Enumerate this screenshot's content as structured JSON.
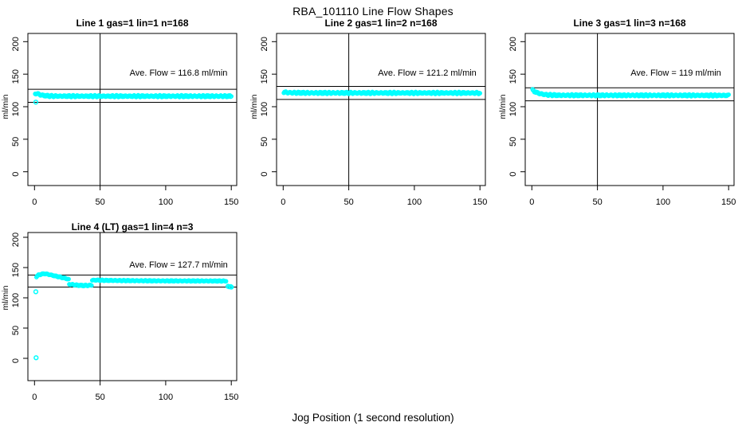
{
  "page": {
    "title": "RBA_101110  Line Flow Shapes",
    "xlabel": "Jog Position (1 second resolution)"
  },
  "colors": {
    "points": "#00ffff",
    "axis": "#000000",
    "ref_lines": "#000000",
    "background": "#ffffff",
    "text": "#000000"
  },
  "axes": {
    "x_ticks": [
      0,
      50,
      100,
      150
    ],
    "y_ticks": [
      0,
      50,
      100,
      150,
      200
    ],
    "ylabel": "ml/min"
  },
  "chart_data": [
    {
      "type": "scatter",
      "row": 0,
      "col": 0,
      "title": "Line 1 gas=1 lin=1 n=168",
      "line": 1,
      "gas": 1,
      "lin": 1,
      "n": 168,
      "ave_flow": 116.8,
      "ave_flow_label": "Ave. Flow =  116.8  ml/min",
      "xlabel": "",
      "ylabel": "ml/min",
      "xlim": [
        0,
        155
      ],
      "ylim": [
        0,
        210
      ],
      "x_ticks": [
        0,
        50,
        100,
        150
      ],
      "y_ticks": [
        0,
        50,
        100,
        150,
        200
      ],
      "ref_lines": {
        "h_upper": 126.8,
        "h_lower": 106.8,
        "v": 50
      },
      "segments": [
        {
          "band": 3.0,
          "anchors": [
            [
              0.5,
              119.5
            ],
            [
              1.5,
              120.5
            ],
            [
              2.5,
              120.0
            ],
            [
              4,
              118.5
            ],
            [
              6,
              117.5
            ],
            [
              9,
              116.8
            ],
            [
              14,
              116.3
            ],
            [
              40,
              116.2
            ],
            [
              150,
              116.2
            ]
          ]
        }
      ],
      "outliers": [
        [
          1,
          107
        ]
      ]
    },
    {
      "type": "scatter",
      "row": 0,
      "col": 1,
      "title": "Line 2 gas=1 lin=2 n=168",
      "line": 2,
      "gas": 1,
      "lin": 2,
      "n": 168,
      "ave_flow": 121.2,
      "ave_flow_label": "Ave. Flow =  121.2  ml/min",
      "xlabel": "",
      "ylabel": "ml/min",
      "xlim": [
        0,
        155
      ],
      "ylim": [
        0,
        210
      ],
      "x_ticks": [
        0,
        50,
        100,
        150
      ],
      "y_ticks": [
        0,
        50,
        100,
        150,
        200
      ],
      "ref_lines": {
        "h_upper": 131.2,
        "h_lower": 111.2,
        "v": 50
      },
      "segments": [
        {
          "band": 3.2,
          "anchors": [
            [
              0.5,
              122.5
            ],
            [
              2,
              122.0
            ],
            [
              5,
              121.5
            ],
            [
              20,
              121.2
            ],
            [
              150,
              121.1
            ]
          ]
        }
      ],
      "outliers": []
    },
    {
      "type": "scatter",
      "row": 0,
      "col": 2,
      "title": "Line 3 gas=1 lin=3 n=168",
      "line": 3,
      "gas": 1,
      "lin": 3,
      "n": 168,
      "ave_flow": 119,
      "ave_flow_label": "Ave. Flow =  119  ml/min",
      "xlabel": "",
      "ylabel": "ml/min",
      "xlim": [
        0,
        155
      ],
      "ylim": [
        0,
        210
      ],
      "x_ticks": [
        0,
        50,
        100,
        150
      ],
      "y_ticks": [
        0,
        50,
        100,
        150,
        200
      ],
      "ref_lines": {
        "h_upper": 129,
        "h_lower": 109,
        "v": 50
      },
      "segments": [
        {
          "band": 3.0,
          "anchors": [
            [
              0.5,
              125.5
            ],
            [
              1.5,
              124.0
            ],
            [
              3,
              122.5
            ],
            [
              5,
              120.8
            ],
            [
              8,
              119.3
            ],
            [
              12,
              118.2
            ],
            [
              20,
              117.6
            ],
            [
              150,
              117.4
            ]
          ]
        }
      ],
      "outliers": []
    },
    {
      "type": "scatter",
      "row": 1,
      "col": 0,
      "title": "Line 4 (LT) gas=1 lin=4 n=3",
      "line": 4,
      "line_note": "LT",
      "gas": 1,
      "lin": 4,
      "n": 3,
      "ave_flow": 127.7,
      "ave_flow_label": "Ave. Flow =  127.7  ml/min",
      "xlabel": "",
      "ylabel": "ml/min",
      "xlim": [
        0,
        155
      ],
      "ylim": [
        0,
        210
      ],
      "x_ticks": [
        0,
        50,
        100,
        150
      ],
      "y_ticks": [
        0,
        50,
        100,
        150,
        200
      ],
      "ref_lines": {
        "h_upper": 137.7,
        "h_lower": 117.7,
        "v": 50
      },
      "segments": [
        {
          "band": 1.8,
          "anchors": [
            [
              1.5,
              135.0
            ],
            [
              3,
              137.5
            ],
            [
              5,
              139.0
            ],
            [
              7,
              139.8
            ],
            [
              9,
              139.5
            ],
            [
              12,
              138.0
            ],
            [
              15,
              136.5
            ],
            [
              18,
              135.0
            ],
            [
              21,
              133.5
            ],
            [
              24,
              132.0
            ],
            [
              26,
              130.5
            ]
          ]
        },
        {
          "band": 2.2,
          "anchors": [
            [
              26.5,
              122.5
            ],
            [
              29,
              121.8
            ],
            [
              33,
              120.8
            ],
            [
              37,
              120.3
            ],
            [
              41,
              120.5
            ],
            [
              43.5,
              121.0
            ]
          ]
        },
        {
          "band": 1.8,
          "anchors": [
            [
              44,
              128.8
            ],
            [
              46,
              129.3
            ],
            [
              50,
              129.0
            ],
            [
              55,
              128.8
            ],
            [
              65,
              128.5
            ],
            [
              80,
              128.2
            ],
            [
              95,
              128.0
            ],
            [
              115,
              127.9
            ],
            [
              135,
              127.8
            ],
            [
              146,
              127.7
            ]
          ]
        }
      ],
      "outliers": [
        [
          1,
          110
        ],
        [
          1.2,
          1
        ],
        [
          147.5,
          119
        ],
        [
          148.5,
          118.3
        ],
        [
          149.5,
          118.6
        ],
        [
          150,
          117.8
        ]
      ]
    }
  ]
}
